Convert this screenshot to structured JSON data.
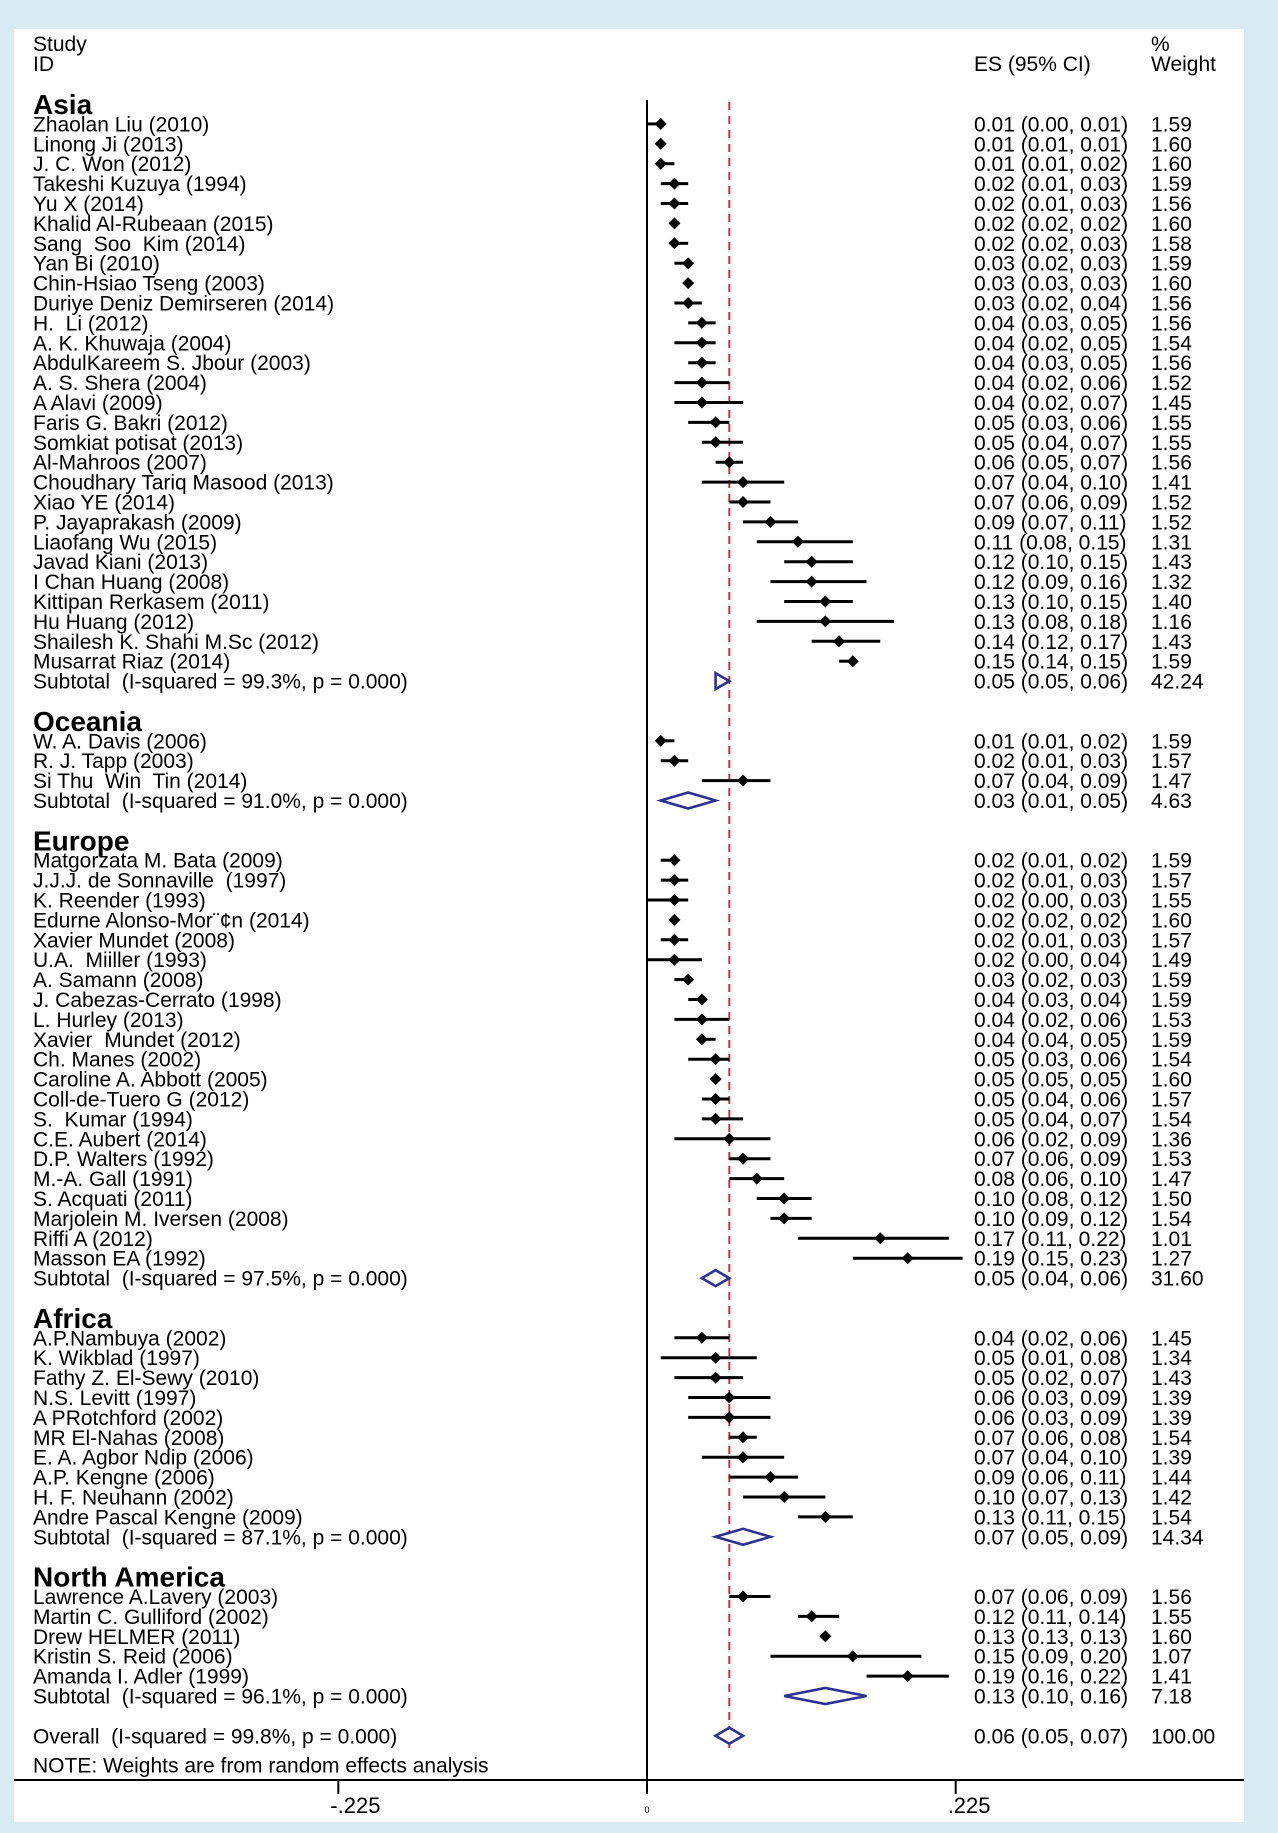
{
  "colors": {
    "page_background": "#d8ebf2",
    "panel": "#ffffff",
    "marker": "#000000",
    "pooled_diamond": "#2e3192",
    "overall_line": "#c8313e"
  },
  "chart_data": {
    "type": "scatter",
    "columns": {
      "study": [
        "Study",
        "ID"
      ],
      "es": "ES (95% CI)",
      "weight": [
        "%",
        "Weight"
      ]
    },
    "x_ticks": [
      {
        "value": -0.225,
        "label": "-.225"
      },
      {
        "value": 0,
        "label": "0"
      },
      {
        "value": 0.225,
        "label": ".225"
      }
    ],
    "groups": [
      {
        "name": "Asia",
        "studies": [
          {
            "id": "Zhaolan Liu (2010)",
            "es": 0.01,
            "ci": [
              0.0,
              0.01
            ],
            "es_ci": "0.01 (0.00, 0.01)",
            "weight": "1.59"
          },
          {
            "id": "Linong Ji (2013)",
            "es": 0.01,
            "ci": [
              0.01,
              0.01
            ],
            "es_ci": "0.01 (0.01, 0.01)",
            "weight": "1.60"
          },
          {
            "id": "J. C. Won (2012)",
            "es": 0.01,
            "ci": [
              0.01,
              0.02
            ],
            "es_ci": "0.01 (0.01, 0.02)",
            "weight": "1.60"
          },
          {
            "id": "Takeshi Kuzuya (1994)",
            "es": 0.02,
            "ci": [
              0.01,
              0.03
            ],
            "es_ci": "0.02 (0.01, 0.03)",
            "weight": "1.59"
          },
          {
            "id": "Yu X (2014)",
            "es": 0.02,
            "ci": [
              0.01,
              0.03
            ],
            "es_ci": "0.02 (0.01, 0.03)",
            "weight": "1.56"
          },
          {
            "id": "Khalid Al-Rubeaan (2015)",
            "es": 0.02,
            "ci": [
              0.02,
              0.02
            ],
            "es_ci": "0.02 (0.02, 0.02)",
            "weight": "1.60"
          },
          {
            "id": "Sang  Soo  Kim (2014)",
            "es": 0.02,
            "ci": [
              0.02,
              0.03
            ],
            "es_ci": "0.02 (0.02, 0.03)",
            "weight": "1.58"
          },
          {
            "id": "Yan Bi (2010)",
            "es": 0.03,
            "ci": [
              0.02,
              0.03
            ],
            "es_ci": "0.03 (0.02, 0.03)",
            "weight": "1.59"
          },
          {
            "id": "Chin-Hsiao Tseng (2003)",
            "es": 0.03,
            "ci": [
              0.03,
              0.03
            ],
            "es_ci": "0.03 (0.03, 0.03)",
            "weight": "1.60"
          },
          {
            "id": "Duriye Deniz Demirseren (2014)",
            "es": 0.03,
            "ci": [
              0.02,
              0.04
            ],
            "es_ci": "0.03 (0.02, 0.04)",
            "weight": "1.56"
          },
          {
            "id": "H.  Li (2012)",
            "es": 0.04,
            "ci": [
              0.03,
              0.05
            ],
            "es_ci": "0.04 (0.03, 0.05)",
            "weight": "1.56"
          },
          {
            "id": "A. K. Khuwaja (2004)",
            "es": 0.04,
            "ci": [
              0.02,
              0.05
            ],
            "es_ci": "0.04 (0.02, 0.05)",
            "weight": "1.54"
          },
          {
            "id": "AbdulKareem S. Jbour (2003)",
            "es": 0.04,
            "ci": [
              0.03,
              0.05
            ],
            "es_ci": "0.04 (0.03, 0.05)",
            "weight": "1.56"
          },
          {
            "id": "A. S. Shera (2004)",
            "es": 0.04,
            "ci": [
              0.02,
              0.06
            ],
            "es_ci": "0.04 (0.02, 0.06)",
            "weight": "1.52"
          },
          {
            "id": "A Alavi (2009)",
            "es": 0.04,
            "ci": [
              0.02,
              0.07
            ],
            "es_ci": "0.04 (0.02, 0.07)",
            "weight": "1.45"
          },
          {
            "id": "Faris G. Bakri (2012)",
            "es": 0.05,
            "ci": [
              0.03,
              0.06
            ],
            "es_ci": "0.05 (0.03, 0.06)",
            "weight": "1.55"
          },
          {
            "id": "Somkiat potisat (2013)",
            "es": 0.05,
            "ci": [
              0.04,
              0.07
            ],
            "es_ci": "0.05 (0.04, 0.07)",
            "weight": "1.55"
          },
          {
            "id": "Al-Mahroos (2007)",
            "es": 0.06,
            "ci": [
              0.05,
              0.07
            ],
            "es_ci": "0.06 (0.05, 0.07)",
            "weight": "1.56"
          },
          {
            "id": "Choudhary Tariq Masood (2013)",
            "es": 0.07,
            "ci": [
              0.04,
              0.1
            ],
            "es_ci": "0.07 (0.04, 0.10)",
            "weight": "1.41"
          },
          {
            "id": "Xiao YE (2014)",
            "es": 0.07,
            "ci": [
              0.06,
              0.09
            ],
            "es_ci": "0.07 (0.06, 0.09)",
            "weight": "1.52"
          },
          {
            "id": "P. Jayaprakash (2009)",
            "es": 0.09,
            "ci": [
              0.07,
              0.11
            ],
            "es_ci": "0.09 (0.07, 0.11)",
            "weight": "1.52"
          },
          {
            "id": "Liaofang Wu (2015)",
            "es": 0.11,
            "ci": [
              0.08,
              0.15
            ],
            "es_ci": "0.11 (0.08, 0.15)",
            "weight": "1.31"
          },
          {
            "id": "Javad Kiani (2013)",
            "es": 0.12,
            "ci": [
              0.1,
              0.15
            ],
            "es_ci": "0.12 (0.10, 0.15)",
            "weight": "1.43"
          },
          {
            "id": "I Chan Huang (2008)",
            "es": 0.12,
            "ci": [
              0.09,
              0.16
            ],
            "es_ci": "0.12 (0.09, 0.16)",
            "weight": "1.32"
          },
          {
            "id": "Kittipan Rerkasem (2011)",
            "es": 0.13,
            "ci": [
              0.1,
              0.15
            ],
            "es_ci": "0.13 (0.10, 0.15)",
            "weight": "1.40"
          },
          {
            "id": "Hu Huang (2012)",
            "es": 0.13,
            "ci": [
              0.08,
              0.18
            ],
            "es_ci": "0.13 (0.08, 0.18)",
            "weight": "1.16"
          },
          {
            "id": "Shailesh K. Shahi M.Sc (2012)",
            "es": 0.14,
            "ci": [
              0.12,
              0.17
            ],
            "es_ci": "0.14 (0.12, 0.17)",
            "weight": "1.43"
          },
          {
            "id": "Musarrat Riaz (2014)",
            "es": 0.15,
            "ci": [
              0.14,
              0.15
            ],
            "es_ci": "0.15 (0.14, 0.15)",
            "weight": "1.59"
          }
        ],
        "subtotal": {
          "label": "Subtotal  (I-squared = 99.3%, p = 0.000)",
          "es": 0.05,
          "ci": [
            0.05,
            0.06
          ],
          "es_ci": "0.05 (0.05, 0.06)",
          "weight": "42.24"
        }
      },
      {
        "name": "Oceania",
        "studies": [
          {
            "id": "W. A. Davis (2006)",
            "es": 0.01,
            "ci": [
              0.01,
              0.02
            ],
            "es_ci": "0.01 (0.01, 0.02)",
            "weight": "1.59"
          },
          {
            "id": "R. J. Tapp (2003)",
            "es": 0.02,
            "ci": [
              0.01,
              0.03
            ],
            "es_ci": "0.02 (0.01, 0.03)",
            "weight": "1.57"
          },
          {
            "id": "Si Thu  Win  Tin (2014)",
            "es": 0.07,
            "ci": [
              0.04,
              0.09
            ],
            "es_ci": "0.07 (0.04, 0.09)",
            "weight": "1.47"
          }
        ],
        "subtotal": {
          "label": "Subtotal  (I-squared = 91.0%, p = 0.000)",
          "es": 0.03,
          "ci": [
            0.01,
            0.05
          ],
          "es_ci": "0.03 (0.01, 0.05)",
          "weight": "4.63"
        }
      },
      {
        "name": "Europe",
        "studies": [
          {
            "id": "Matgorzata M. Bata (2009)",
            "es": 0.02,
            "ci": [
              0.01,
              0.02
            ],
            "es_ci": "0.02 (0.01, 0.02)",
            "weight": "1.59"
          },
          {
            "id": "J.J.J. de Sonnaville  (1997)",
            "es": 0.02,
            "ci": [
              0.01,
              0.03
            ],
            "es_ci": "0.02 (0.01, 0.03)",
            "weight": "1.57"
          },
          {
            "id": "K. Reender (1993)",
            "es": 0.02,
            "ci": [
              0.0,
              0.03
            ],
            "es_ci": "0.02 (0.00, 0.03)",
            "weight": "1.55"
          },
          {
            "id": "Edurne Alonso-Mor¨¢n (2014)",
            "es": 0.02,
            "ci": [
              0.02,
              0.02
            ],
            "es_ci": "0.02 (0.02, 0.02)",
            "weight": "1.60"
          },
          {
            "id": "Xavier Mundet (2008)",
            "es": 0.02,
            "ci": [
              0.01,
              0.03
            ],
            "es_ci": "0.02 (0.01, 0.03)",
            "weight": "1.57"
          },
          {
            "id": "U.A.  Miiller (1993)",
            "es": 0.02,
            "ci": [
              0.0,
              0.04
            ],
            "es_ci": "0.02 (0.00, 0.04)",
            "weight": "1.49"
          },
          {
            "id": "A. Samann (2008)",
            "es": 0.03,
            "ci": [
              0.02,
              0.03
            ],
            "es_ci": "0.03 (0.02, 0.03)",
            "weight": "1.59"
          },
          {
            "id": "J. Cabezas-Cerrato (1998)",
            "es": 0.04,
            "ci": [
              0.03,
              0.04
            ],
            "es_ci": "0.04 (0.03, 0.04)",
            "weight": "1.59"
          },
          {
            "id": "L. Hurley (2013)",
            "es": 0.04,
            "ci": [
              0.02,
              0.06
            ],
            "es_ci": "0.04 (0.02, 0.06)",
            "weight": "1.53"
          },
          {
            "id": "Xavier  Mundet (2012)",
            "es": 0.04,
            "ci": [
              0.04,
              0.05
            ],
            "es_ci": "0.04 (0.04, 0.05)",
            "weight": "1.59"
          },
          {
            "id": "Ch. Manes (2002)",
            "es": 0.05,
            "ci": [
              0.03,
              0.06
            ],
            "es_ci": "0.05 (0.03, 0.06)",
            "weight": "1.54"
          },
          {
            "id": "Caroline A. Abbott (2005)",
            "es": 0.05,
            "ci": [
              0.05,
              0.05
            ],
            "es_ci": "0.05 (0.05, 0.05)",
            "weight": "1.60"
          },
          {
            "id": "Coll-de-Tuero G (2012)",
            "es": 0.05,
            "ci": [
              0.04,
              0.06
            ],
            "es_ci": "0.05 (0.04, 0.06)",
            "weight": "1.57"
          },
          {
            "id": "S.  Kumar (1994)",
            "es": 0.05,
            "ci": [
              0.04,
              0.07
            ],
            "es_ci": "0.05 (0.04, 0.07)",
            "weight": "1.54"
          },
          {
            "id": "C.E. Aubert (2014)",
            "es": 0.06,
            "ci": [
              0.02,
              0.09
            ],
            "es_ci": "0.06 (0.02, 0.09)",
            "weight": "1.36"
          },
          {
            "id": "D.P. Walters (1992)",
            "es": 0.07,
            "ci": [
              0.06,
              0.09
            ],
            "es_ci": "0.07 (0.06, 0.09)",
            "weight": "1.53"
          },
          {
            "id": "M.-A. Gall (1991)",
            "es": 0.08,
            "ci": [
              0.06,
              0.1
            ],
            "es_ci": "0.08 (0.06, 0.10)",
            "weight": "1.47"
          },
          {
            "id": "S. Acquati (2011)",
            "es": 0.1,
            "ci": [
              0.08,
              0.12
            ],
            "es_ci": "0.10 (0.08, 0.12)",
            "weight": "1.50"
          },
          {
            "id": "Marjolein M. Iversen (2008)",
            "es": 0.1,
            "ci": [
              0.09,
              0.12
            ],
            "es_ci": "0.10 (0.09, 0.12)",
            "weight": "1.54"
          },
          {
            "id": "Riffi A (2012)",
            "es": 0.17,
            "ci": [
              0.11,
              0.22
            ],
            "es_ci": "0.17 (0.11, 0.22)",
            "weight": "1.01"
          },
          {
            "id": "Masson EA (1992)",
            "es": 0.19,
            "ci": [
              0.15,
              0.23
            ],
            "es_ci": "0.19 (0.15, 0.23)",
            "weight": "1.27"
          }
        ],
        "subtotal": {
          "label": "Subtotal  (I-squared = 97.5%, p = 0.000)",
          "es": 0.05,
          "ci": [
            0.04,
            0.06
          ],
          "es_ci": "0.05 (0.04, 0.06)",
          "weight": "31.60"
        }
      },
      {
        "name": "Africa",
        "studies": [
          {
            "id": "A.P.Nambuya (2002)",
            "es": 0.04,
            "ci": [
              0.02,
              0.06
            ],
            "es_ci": "0.04 (0.02, 0.06)",
            "weight": "1.45"
          },
          {
            "id": "K. Wikblad (1997)",
            "es": 0.05,
            "ci": [
              0.01,
              0.08
            ],
            "es_ci": "0.05 (0.01, 0.08)",
            "weight": "1.34"
          },
          {
            "id": "Fathy Z. El-Sewy (2010)",
            "es": 0.05,
            "ci": [
              0.02,
              0.07
            ],
            "es_ci": "0.05 (0.02, 0.07)",
            "weight": "1.43"
          },
          {
            "id": "N.S. Levitt (1997)",
            "es": 0.06,
            "ci": [
              0.03,
              0.09
            ],
            "es_ci": "0.06 (0.03, 0.09)",
            "weight": "1.39"
          },
          {
            "id": "A PRotchford (2002)",
            "es": 0.06,
            "ci": [
              0.03,
              0.09
            ],
            "es_ci": "0.06 (0.03, 0.09)",
            "weight": "1.39"
          },
          {
            "id": "MR El-Nahas (2008)",
            "es": 0.07,
            "ci": [
              0.06,
              0.08
            ],
            "es_ci": "0.07 (0.06, 0.08)",
            "weight": "1.54"
          },
          {
            "id": "E. A. Agbor Ndip (2006)",
            "es": 0.07,
            "ci": [
              0.04,
              0.1
            ],
            "es_ci": "0.07 (0.04, 0.10)",
            "weight": "1.39"
          },
          {
            "id": "A.P. Kengne (2006)",
            "es": 0.09,
            "ci": [
              0.06,
              0.11
            ],
            "es_ci": "0.09 (0.06, 0.11)",
            "weight": "1.44"
          },
          {
            "id": "H. F. Neuhann (2002)",
            "es": 0.1,
            "ci": [
              0.07,
              0.13
            ],
            "es_ci": "0.10 (0.07, 0.13)",
            "weight": "1.42"
          },
          {
            "id": "Andre Pascal Kengne (2009)",
            "es": 0.13,
            "ci": [
              0.11,
              0.15
            ],
            "es_ci": "0.13 (0.11, 0.15)",
            "weight": "1.54"
          }
        ],
        "subtotal": {
          "label": "Subtotal  (I-squared = 87.1%, p = 0.000)",
          "es": 0.07,
          "ci": [
            0.05,
            0.09
          ],
          "es_ci": "0.07 (0.05, 0.09)",
          "weight": "14.34"
        }
      },
      {
        "name": "North America",
        "studies": [
          {
            "id": "Lawrence A.Lavery (2003)",
            "es": 0.07,
            "ci": [
              0.06,
              0.09
            ],
            "es_ci": "0.07 (0.06, 0.09)",
            "weight": "1.56"
          },
          {
            "id": "Martin C. Gulliford (2002)",
            "es": 0.12,
            "ci": [
              0.11,
              0.14
            ],
            "es_ci": "0.12 (0.11, 0.14)",
            "weight": "1.55"
          },
          {
            "id": "Drew HELMER (2011)",
            "es": 0.13,
            "ci": [
              0.13,
              0.13
            ],
            "es_ci": "0.13 (0.13, 0.13)",
            "weight": "1.60"
          },
          {
            "id": "Kristin S. Reid (2006)",
            "es": 0.15,
            "ci": [
              0.09,
              0.2
            ],
            "es_ci": "0.15 (0.09, 0.20)",
            "weight": "1.07"
          },
          {
            "id": "Amanda I. Adler (1999)",
            "es": 0.19,
            "ci": [
              0.16,
              0.22
            ],
            "es_ci": "0.19 (0.16, 0.22)",
            "weight": "1.41"
          }
        ],
        "subtotal": {
          "label": "Subtotal  (I-squared = 96.1%, p = 0.000)",
          "es": 0.13,
          "ci": [
            0.1,
            0.16
          ],
          "es_ci": "0.13 (0.10, 0.16)",
          "weight": "7.18"
        }
      }
    ],
    "overall": {
      "label": "Overall  (I-squared = 99.8%, p = 0.000)",
      "es": 0.06,
      "ci": [
        0.05,
        0.07
      ],
      "es_ci": "0.06 (0.05, 0.07)",
      "weight": "100.00"
    },
    "note": "NOTE: Weights are from random effects analysis"
  }
}
